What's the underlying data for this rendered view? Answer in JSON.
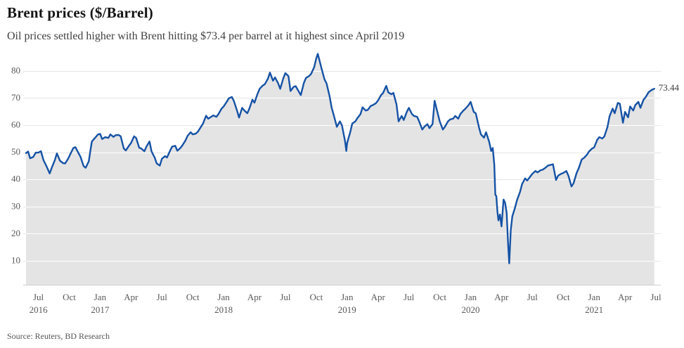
{
  "header": {
    "title": "Brent prices ($/Barrel)",
    "subtitle": "Oil prices settled higher with Brent hitting $73.4 per barrel at it highest since April 2019"
  },
  "footer": {
    "source": "Source: Reuters, BD Research"
  },
  "chart_data": {
    "type": "area",
    "title": "Brent prices ($/Barrel)",
    "subtitle": "Oil prices settled higher with Brent hitting $73.4 per barrel at it highest since April 2019",
    "xlabel": "",
    "ylabel": "",
    "x_unit": "months since Jul 2016",
    "xlim": [
      -1.2,
      60
    ],
    "ylim": [
      1.2,
      88
    ],
    "grid": true,
    "legend": false,
    "end_label": "73.44",
    "y_ticks": [
      10,
      20,
      30,
      40,
      50,
      60,
      70,
      80
    ],
    "x_ticks": [
      {
        "t": 0,
        "label": "Jul"
      },
      {
        "t": 3,
        "label": "Oct"
      },
      {
        "t": 6,
        "label": "Jan"
      },
      {
        "t": 9,
        "label": "Apr"
      },
      {
        "t": 12,
        "label": "Jul"
      },
      {
        "t": 15,
        "label": "Oct"
      },
      {
        "t": 18,
        "label": "Jan"
      },
      {
        "t": 21,
        "label": "Apr"
      },
      {
        "t": 24,
        "label": "Jul"
      },
      {
        "t": 27,
        "label": "Oct"
      },
      {
        "t": 30,
        "label": "Jan"
      },
      {
        "t": 33,
        "label": "Apr"
      },
      {
        "t": 36,
        "label": "Jul"
      },
      {
        "t": 39,
        "label": "Oct"
      },
      {
        "t": 42,
        "label": "Jan"
      },
      {
        "t": 45,
        "label": "Apr"
      },
      {
        "t": 48,
        "label": "Jul"
      },
      {
        "t": 51,
        "label": "Oct"
      },
      {
        "t": 54,
        "label": "Jan"
      },
      {
        "t": 57,
        "label": "Apr"
      },
      {
        "t": 60,
        "label": "Jul"
      }
    ],
    "year_labels": [
      {
        "t": 0,
        "label": "2016"
      },
      {
        "t": 6,
        "label": "2017"
      },
      {
        "t": 18,
        "label": "2018"
      },
      {
        "t": 30,
        "label": "2019"
      },
      {
        "t": 42,
        "label": "2020"
      },
      {
        "t": 54,
        "label": "2021"
      }
    ],
    "colors": {
      "line": "#1552a5",
      "fill": "#e4e4e4",
      "grid_inside": "#ffffff",
      "grid_outside": "#e6e6e6",
      "axis_line": "#cfcfcf",
      "tick_text": "#595959",
      "title_text": "#141414",
      "subtitle_text": "#3f3f3f"
    },
    "series": [
      {
        "name": "Brent",
        "points": [
          [
            -1.2,
            49.7
          ],
          [
            -1.0,
            50.3
          ],
          [
            -0.8,
            47.8
          ],
          [
            -0.5,
            48.3
          ],
          [
            -0.25,
            49.9
          ],
          [
            0,
            49.9
          ],
          [
            0.25,
            50.4
          ],
          [
            0.5,
            47.1
          ],
          [
            0.8,
            44.8
          ],
          [
            1.1,
            42.2
          ],
          [
            1.3,
            44.3
          ],
          [
            1.6,
            47.1
          ],
          [
            1.8,
            49.6
          ],
          [
            2.1,
            46.9
          ],
          [
            2.4,
            46.0
          ],
          [
            2.6,
            45.9
          ],
          [
            2.9,
            47.7
          ],
          [
            3.1,
            49.3
          ],
          [
            3.4,
            51.6
          ],
          [
            3.6,
            51.9
          ],
          [
            3.9,
            49.7
          ],
          [
            4.1,
            48.3
          ],
          [
            4.4,
            44.9
          ],
          [
            4.6,
            44.3
          ],
          [
            4.9,
            46.7
          ],
          [
            5.05,
            50.5
          ],
          [
            5.2,
            54.0
          ],
          [
            5.5,
            55.3
          ],
          [
            5.8,
            56.6
          ],
          [
            6.0,
            56.8
          ],
          [
            6.2,
            54.9
          ],
          [
            6.5,
            55.6
          ],
          [
            6.8,
            55.3
          ],
          [
            7.0,
            56.6
          ],
          [
            7.3,
            55.7
          ],
          [
            7.5,
            56.3
          ],
          [
            7.8,
            56.4
          ],
          [
            8.0,
            55.9
          ],
          [
            8.3,
            51.4
          ],
          [
            8.5,
            50.7
          ],
          [
            8.8,
            52.4
          ],
          [
            9.0,
            53.4
          ],
          [
            9.3,
            55.9
          ],
          [
            9.5,
            55.3
          ],
          [
            9.8,
            51.7
          ],
          [
            10.0,
            51.4
          ],
          [
            10.3,
            50.4
          ],
          [
            10.5,
            52.1
          ],
          [
            10.8,
            54.0
          ],
          [
            11.0,
            50.3
          ],
          [
            11.3,
            48.1
          ],
          [
            11.5,
            45.9
          ],
          [
            11.8,
            45.1
          ],
          [
            12.0,
            47.6
          ],
          [
            12.3,
            48.6
          ],
          [
            12.5,
            48.1
          ],
          [
            12.8,
            50.6
          ],
          [
            13.0,
            52.1
          ],
          [
            13.3,
            52.4
          ],
          [
            13.5,
            50.6
          ],
          [
            13.8,
            51.6
          ],
          [
            14.0,
            52.6
          ],
          [
            14.3,
            54.4
          ],
          [
            14.5,
            56.1
          ],
          [
            14.8,
            57.4
          ],
          [
            15.0,
            56.6
          ],
          [
            15.3,
            56.9
          ],
          [
            15.5,
            57.6
          ],
          [
            15.8,
            59.4
          ],
          [
            16.0,
            60.6
          ],
          [
            16.3,
            63.5
          ],
          [
            16.5,
            62.4
          ],
          [
            16.8,
            63.1
          ],
          [
            17.0,
            63.6
          ],
          [
            17.3,
            63.1
          ],
          [
            17.5,
            64.1
          ],
          [
            17.8,
            66.1
          ],
          [
            18.0,
            66.9
          ],
          [
            18.3,
            68.6
          ],
          [
            18.5,
            69.9
          ],
          [
            18.8,
            70.4
          ],
          [
            19.0,
            68.9
          ],
          [
            19.3,
            65.4
          ],
          [
            19.5,
            62.8
          ],
          [
            19.8,
            66.4
          ],
          [
            20.0,
            65.5
          ],
          [
            20.3,
            64.4
          ],
          [
            20.5,
            66.1
          ],
          [
            20.8,
            69.4
          ],
          [
            21.0,
            68.3
          ],
          [
            21.3,
            71.6
          ],
          [
            21.5,
            73.4
          ],
          [
            21.8,
            74.6
          ],
          [
            22.0,
            75.1
          ],
          [
            22.3,
            77.1
          ],
          [
            22.5,
            79.4
          ],
          [
            22.8,
            76.4
          ],
          [
            23.0,
            77.6
          ],
          [
            23.3,
            75.4
          ],
          [
            23.5,
            73.4
          ],
          [
            23.8,
            77.3
          ],
          [
            24.0,
            79.2
          ],
          [
            24.3,
            78.1
          ],
          [
            24.5,
            72.6
          ],
          [
            24.8,
            74.1
          ],
          [
            25.0,
            74.4
          ],
          [
            25.3,
            72.4
          ],
          [
            25.5,
            71.1
          ],
          [
            25.8,
            75.6
          ],
          [
            26.0,
            77.4
          ],
          [
            26.3,
            78.1
          ],
          [
            26.5,
            78.9
          ],
          [
            26.8,
            81.4
          ],
          [
            27.0,
            84.6
          ],
          [
            27.15,
            86.3
          ],
          [
            27.3,
            84.1
          ],
          [
            27.5,
            81.1
          ],
          [
            27.8,
            76.9
          ],
          [
            28.0,
            75.4
          ],
          [
            28.3,
            70.6
          ],
          [
            28.5,
            66.4
          ],
          [
            28.8,
            62.3
          ],
          [
            29.0,
            59.4
          ],
          [
            29.3,
            61.4
          ],
          [
            29.5,
            59.9
          ],
          [
            29.8,
            54.1
          ],
          [
            29.92,
            50.5
          ],
          [
            30.0,
            53.4
          ],
          [
            30.3,
            57.4
          ],
          [
            30.5,
            60.6
          ],
          [
            30.8,
            61.4
          ],
          [
            31.0,
            62.6
          ],
          [
            31.3,
            64.1
          ],
          [
            31.5,
            66.6
          ],
          [
            31.8,
            65.4
          ],
          [
            32.0,
            65.6
          ],
          [
            32.3,
            67.1
          ],
          [
            32.5,
            67.4
          ],
          [
            32.8,
            68.1
          ],
          [
            33.0,
            69.1
          ],
          [
            33.3,
            71.1
          ],
          [
            33.5,
            71.9
          ],
          [
            33.8,
            74.5
          ],
          [
            34.0,
            72.1
          ],
          [
            34.3,
            71.4
          ],
          [
            34.5,
            71.9
          ],
          [
            34.8,
            67.6
          ],
          [
            35.0,
            61.4
          ],
          [
            35.3,
            63.4
          ],
          [
            35.5,
            61.9
          ],
          [
            35.8,
            64.9
          ],
          [
            36.0,
            66.4
          ],
          [
            36.3,
            64.1
          ],
          [
            36.5,
            63.4
          ],
          [
            36.8,
            63.1
          ],
          [
            37.0,
            61.4
          ],
          [
            37.3,
            58.4
          ],
          [
            37.5,
            59.4
          ],
          [
            37.8,
            60.4
          ],
          [
            38.0,
            58.9
          ],
          [
            38.3,
            60.4
          ],
          [
            38.5,
            69.0
          ],
          [
            38.8,
            64.4
          ],
          [
            39.0,
            61.4
          ],
          [
            39.3,
            58.4
          ],
          [
            39.5,
            59.4
          ],
          [
            39.8,
            61.4
          ],
          [
            40.0,
            62.1
          ],
          [
            40.3,
            62.4
          ],
          [
            40.5,
            63.4
          ],
          [
            40.8,
            62.4
          ],
          [
            41.0,
            64.1
          ],
          [
            41.3,
            65.4
          ],
          [
            41.5,
            66.1
          ],
          [
            41.8,
            67.4
          ],
          [
            42.0,
            68.6
          ],
          [
            42.3,
            64.9
          ],
          [
            42.5,
            64.4
          ],
          [
            42.8,
            59.4
          ],
          [
            43.0,
            56.6
          ],
          [
            43.3,
            55.4
          ],
          [
            43.5,
            57.4
          ],
          [
            43.8,
            53.9
          ],
          [
            44.0,
            50.5
          ],
          [
            44.15,
            51.6
          ],
          [
            44.3,
            45.4
          ],
          [
            44.4,
            34.4
          ],
          [
            44.5,
            33.8
          ],
          [
            44.6,
            28.4
          ],
          [
            44.7,
            24.9
          ],
          [
            44.85,
            27.1
          ],
          [
            45.0,
            22.7
          ],
          [
            45.2,
            32.6
          ],
          [
            45.35,
            31.4
          ],
          [
            45.5,
            27.7
          ],
          [
            45.65,
            15.6
          ],
          [
            45.75,
            9.1
          ],
          [
            45.9,
            21.3
          ],
          [
            46.05,
            26.4
          ],
          [
            46.3,
            29.4
          ],
          [
            46.5,
            32.3
          ],
          [
            46.8,
            35.4
          ],
          [
            47.0,
            38.3
          ],
          [
            47.3,
            40.4
          ],
          [
            47.5,
            39.6
          ],
          [
            47.8,
            41.1
          ],
          [
            48.0,
            42.1
          ],
          [
            48.3,
            43.1
          ],
          [
            48.5,
            42.6
          ],
          [
            48.8,
            43.4
          ],
          [
            49.0,
            43.6
          ],
          [
            49.3,
            44.4
          ],
          [
            49.5,
            45.1
          ],
          [
            49.8,
            45.4
          ],
          [
            50.0,
            45.6
          ],
          [
            50.3,
            39.8
          ],
          [
            50.5,
            41.4
          ],
          [
            50.8,
            42.1
          ],
          [
            51.0,
            42.4
          ],
          [
            51.3,
            43.1
          ],
          [
            51.5,
            41.4
          ],
          [
            51.8,
            37.4
          ],
          [
            52.0,
            38.6
          ],
          [
            52.3,
            42.4
          ],
          [
            52.5,
            44.1
          ],
          [
            52.8,
            47.4
          ],
          [
            53.0,
            47.9
          ],
          [
            53.3,
            49.1
          ],
          [
            53.5,
            50.3
          ],
          [
            53.8,
            51.4
          ],
          [
            54.0,
            51.8
          ],
          [
            54.3,
            54.6
          ],
          [
            54.5,
            55.6
          ],
          [
            54.8,
            55.1
          ],
          [
            55.0,
            55.9
          ],
          [
            55.3,
            59.4
          ],
          [
            55.5,
            63.3
          ],
          [
            55.8,
            66.1
          ],
          [
            56.0,
            64.4
          ],
          [
            56.3,
            68.2
          ],
          [
            56.5,
            67.9
          ],
          [
            56.8,
            60.9
          ],
          [
            57.0,
            64.9
          ],
          [
            57.3,
            62.9
          ],
          [
            57.5,
            66.9
          ],
          [
            57.8,
            65.4
          ],
          [
            58.0,
            67.4
          ],
          [
            58.3,
            68.6
          ],
          [
            58.5,
            66.4
          ],
          [
            58.8,
            69.4
          ],
          [
            59.0,
            70.3
          ],
          [
            59.3,
            72.2
          ],
          [
            59.6,
            73.0
          ],
          [
            59.85,
            73.44
          ]
        ]
      }
    ]
  }
}
